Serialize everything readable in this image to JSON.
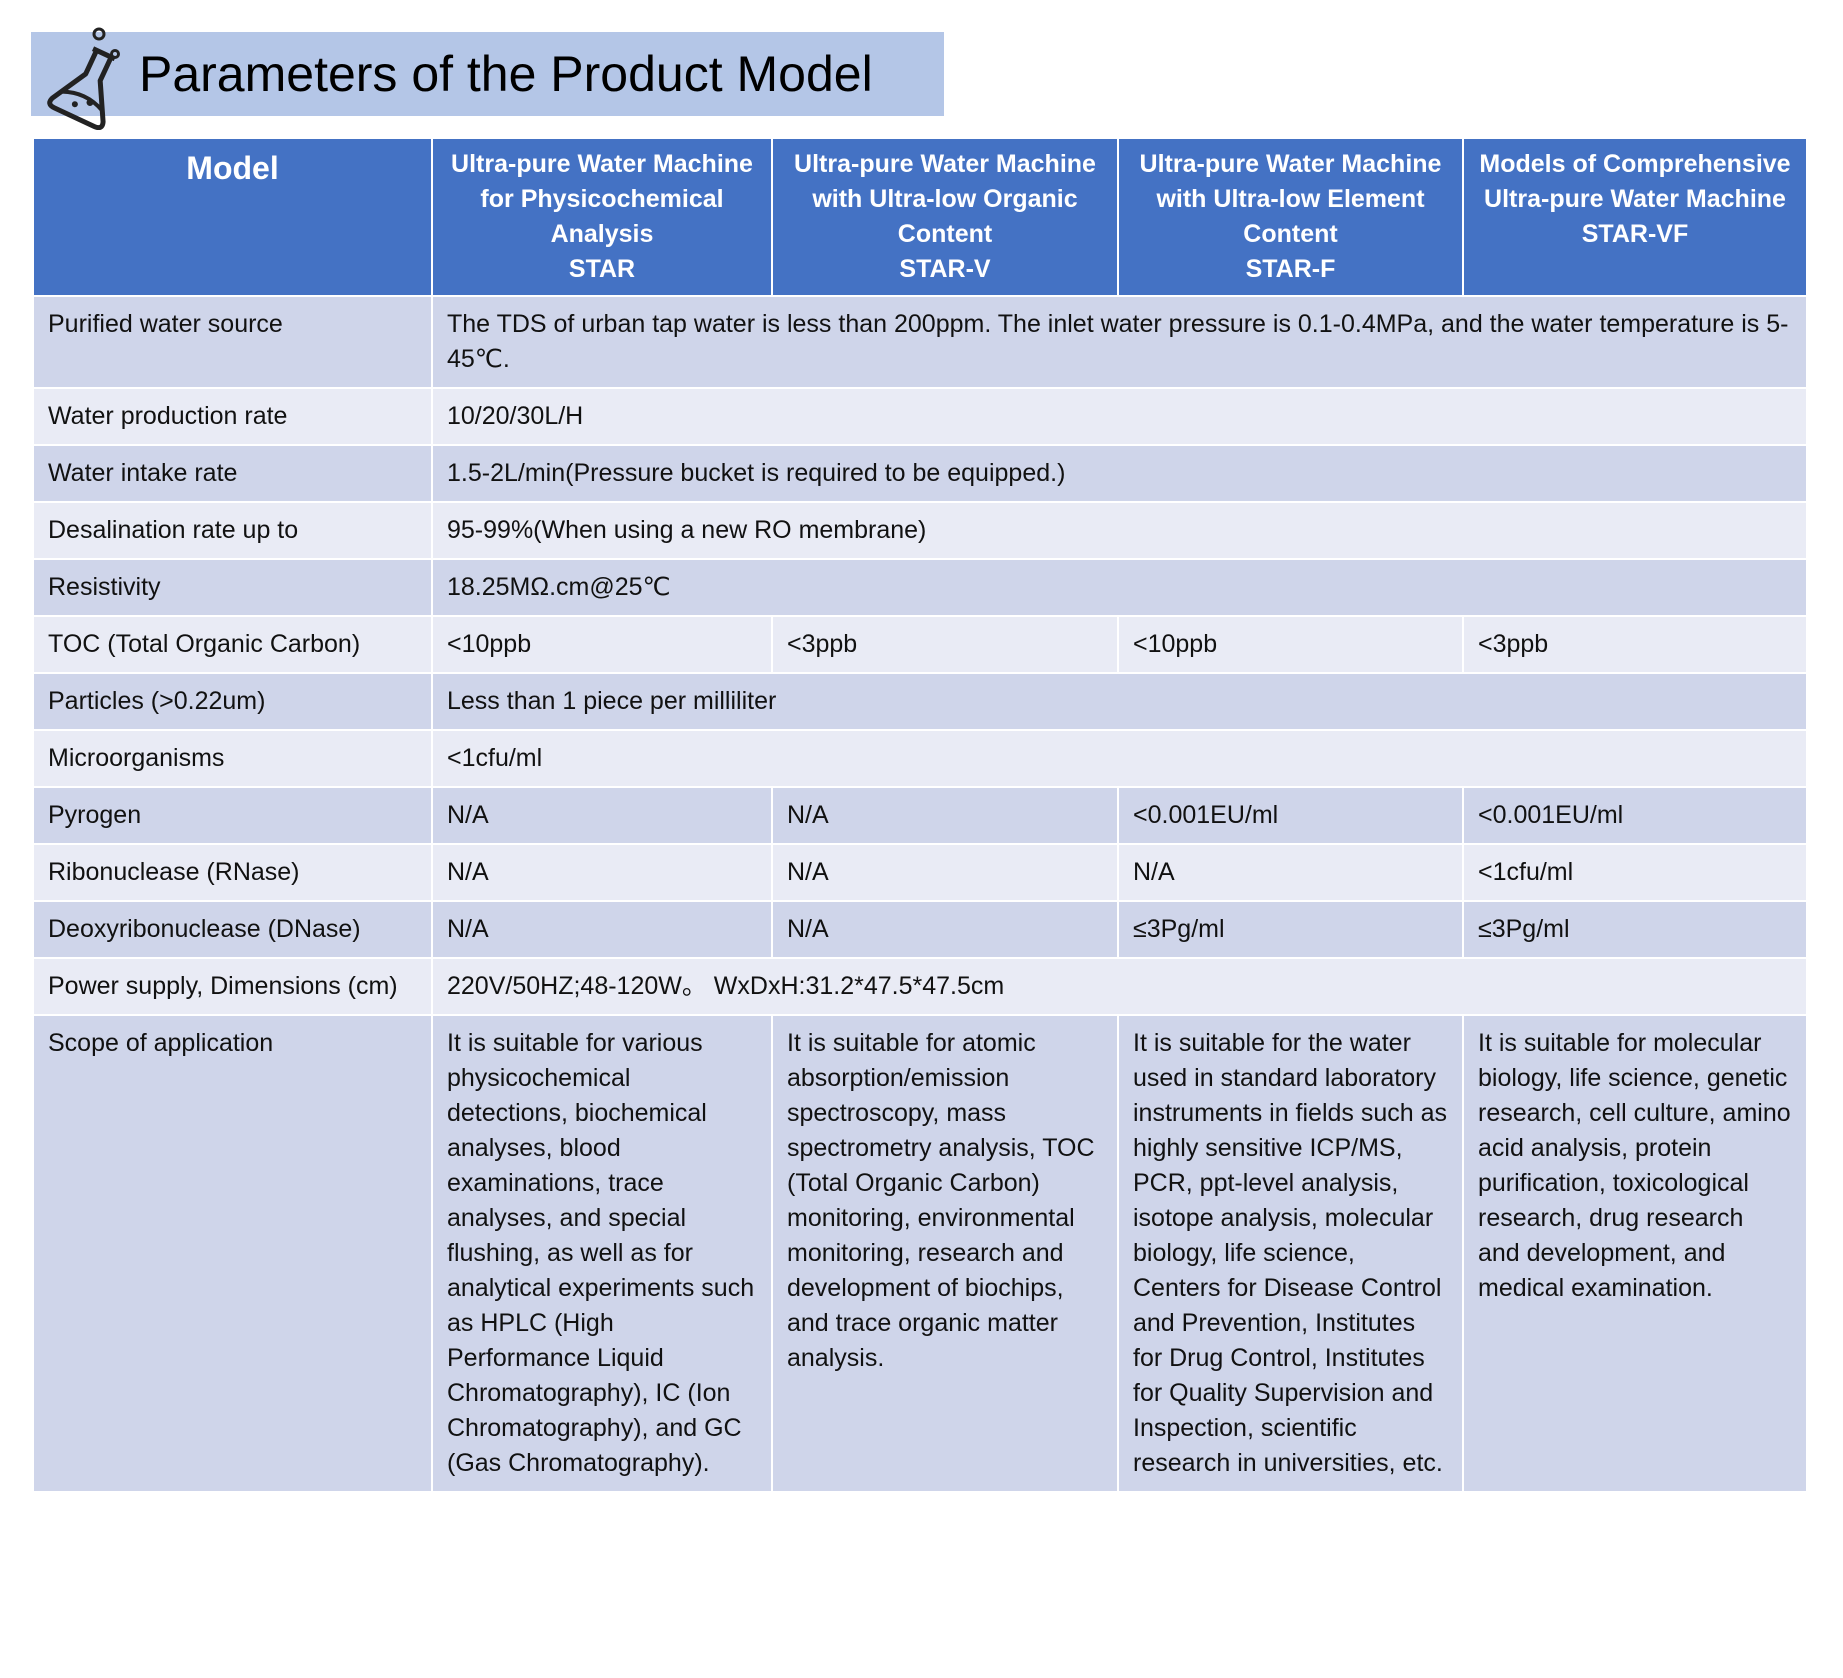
{
  "header": {
    "title": "Parameters of the Product Model"
  },
  "table": {
    "columns": [
      {
        "name": "Model"
      },
      {
        "name": "Ultra-pure Water Machine for Physicochemical Analysis",
        "model": "STAR"
      },
      {
        "name": "Ultra-pure Water Machine with Ultra-low Organic Content",
        "model": "STAR-V"
      },
      {
        "name": "Ultra-pure Water Machine with Ultra-low Element Content",
        "model": "STAR-F"
      },
      {
        "name": "Models of Comprehensive Ultra-pure Water Machine",
        "model": "STAR-VF"
      }
    ],
    "rows": [
      {
        "label": "Purified water source",
        "cells": [
          "The TDS of urban tap water is less than 200ppm. The inlet water pressure is 0.1-0.4MPa, and the water temperature is 5-45℃."
        ]
      },
      {
        "label": "Water production rate",
        "cells": [
          "10/20/30L/H"
        ]
      },
      {
        "label": "Water intake rate",
        "cells": [
          "1.5-2L/min(Pressure bucket is required to be equipped.)"
        ]
      },
      {
        "label": "Desalination rate up to",
        "cells": [
          "95-99%(When using a new RO membrane)"
        ]
      },
      {
        "label": "Resistivity",
        "cells": [
          "18.25MΩ.cm@25℃"
        ]
      },
      {
        "label": "TOC (Total Organic Carbon)",
        "cells": [
          "<10ppb",
          "<3ppb",
          "<10ppb",
          "<3ppb"
        ]
      },
      {
        "label": "Particles (>0.22um)",
        "cells": [
          "Less than 1 piece per milliliter"
        ]
      },
      {
        "label": "Microorganisms",
        "cells": [
          "<1cfu/ml"
        ]
      },
      {
        "label": "Pyrogen",
        "cells": [
          "N/A",
          "N/A",
          "<0.001EU/ml",
          "<0.001EU/ml"
        ]
      },
      {
        "label": "Ribonuclease (RNase)",
        "cells": [
          "N/A",
          "N/A",
          "N/A",
          "<1cfu/ml"
        ]
      },
      {
        "label": "Deoxyribonuclease (DNase)",
        "cells": [
          "N/A",
          "N/A",
          "≤3Pg/ml",
          "≤3Pg/ml"
        ]
      },
      {
        "label": "Power supply, Dimensions (cm)",
        "cells": [
          "220V/50HZ;48-120W。 WxDxH:31.2*47.5*47.5cm"
        ]
      },
      {
        "label": "Scope of application",
        "cells": [
          "It is suitable for various physicochemical detections, biochemical analyses, blood examinations, trace analyses, and special flushing, as well as for analytical experiments such as HPLC (High Performance Liquid Chromatography), IC (Ion Chromatography), and GC (Gas Chromatography).",
          "It is suitable for atomic absorption/emission spectroscopy, mass spectrometry analysis, TOC (Total Organic Carbon) monitoring, environmental monitoring, research and development of biochips, and trace organic matter analysis.",
          "It is suitable for the water used in standard laboratory instruments in fields such as highly sensitive ICP/MS, PCR, ppt-level analysis, isotope analysis, molecular biology, life science, Centers for Disease Control and Prevention, Institutes for Drug Control, Institutes for Quality Supervision and Inspection, scientific research in universities, etc.",
          "It is suitable for molecular biology, life science, genetic research, cell culture, amino acid analysis, protein purification, toxicological research, drug research and development, and medical examination."
        ]
      }
    ]
  }
}
